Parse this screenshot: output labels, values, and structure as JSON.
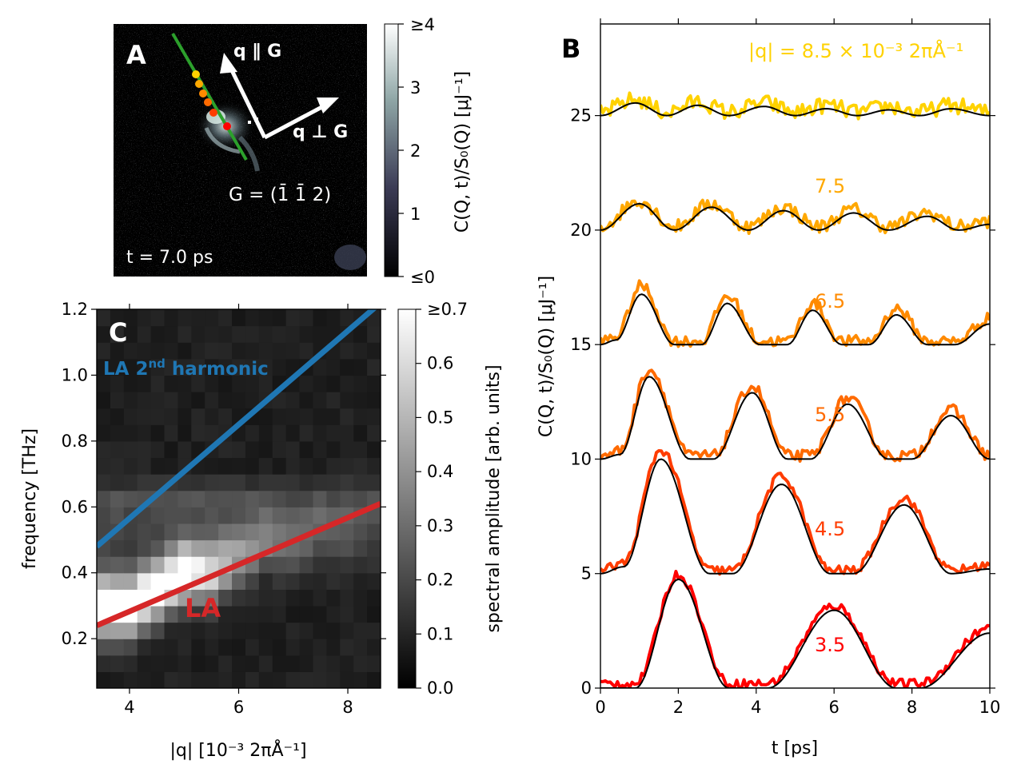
{
  "panels": {
    "a": {
      "letter": "A",
      "time_label": "t = 7.0 ps",
      "arrow_parallel_label": "q ∥ G",
      "arrow_perp_label": "q ⊥ G",
      "g_vector_label": "G = (1̄ 1̄ 2)",
      "colorbar": {
        "label": "C(Q, t)/S₀(Q) [μJ⁻¹]",
        "ticks": [
          "≤0",
          "1",
          "2",
          "3",
          "≥4"
        ],
        "range": [
          0,
          4
        ]
      },
      "point_colors": [
        "#ffd200",
        "#ffa800",
        "#ff8a00",
        "#ff6a00",
        "#ff3c00",
        "#ff0000"
      ],
      "line_color": "#2ca02c"
    },
    "b": {
      "letter": "B",
      "q_prefix": "|q| = ",
      "q_unit": " × 10⁻³ 2πÅ⁻¹",
      "xlabel": "t [ps]",
      "ylabel": "C(Q, t)/S₀(Q) [μJ⁻¹]"
    },
    "c": {
      "letter": "C",
      "harmonic_label": "LA 2",
      "harmonic_sup": "nd",
      "harmonic_suffix": " harmonic",
      "la_label": "LA",
      "xlabel": "|q| [10⁻³ 2πÅ⁻¹]",
      "ylabel": "frequency [THz]",
      "colorbar": {
        "label": "spectral amplitude [arb. units]",
        "ticks": [
          "0.0",
          "0.1",
          "0.2",
          "0.3",
          "0.4",
          "0.5",
          "0.6",
          "≥0.7"
        ],
        "range": [
          0,
          0.7
        ]
      },
      "harmonic_color": "#1f77b4",
      "la_color": "#d62728"
    }
  },
  "chart_data": [
    {
      "id": "panel-b",
      "type": "line",
      "xlabel": "t [ps]",
      "ylabel": "C(Q, t)/S₀(Q) [μJ⁻¹]",
      "xlim": [
        0,
        10
      ],
      "ylim": [
        0,
        29
      ],
      "xticks": [
        0,
        2,
        4,
        6,
        8,
        10
      ],
      "yticks": [
        0,
        5,
        10,
        15,
        20,
        25
      ],
      "series": [
        {
          "q": "8.5",
          "label": "|q| = 8.5 × 10⁻³ 2πÅ⁻¹",
          "color": "#ffd200",
          "offset": 25,
          "noise": 0.35,
          "scale": 1.0,
          "t": [
            0,
            0.9,
            1.7,
            2.5,
            3.3,
            4.2,
            5.0,
            5.8,
            6.6,
            7.4,
            8.2,
            9.0,
            10
          ],
          "model": [
            25,
            25.55,
            25.0,
            25.45,
            25.0,
            25.4,
            25.0,
            25.3,
            25.0,
            25.25,
            25.0,
            25.3,
            25.0
          ]
        },
        {
          "q": "7.5",
          "label": "7.5",
          "color": "#ffa800",
          "offset": 20,
          "noise": 0.3,
          "scale": 1.0,
          "t": [
            0,
            1.0,
            1.9,
            2.85,
            3.8,
            4.7,
            5.6,
            6.5,
            7.4,
            8.4,
            9.2,
            10
          ],
          "model": [
            20,
            21.15,
            20.0,
            21.0,
            20.0,
            20.85,
            20.0,
            20.75,
            20.0,
            20.6,
            20.0,
            20.25
          ]
        },
        {
          "q": "6.5",
          "label": "6.5",
          "color": "#ff8a00",
          "offset": 15,
          "noise": 0.25,
          "scale": 1.1,
          "t": [
            0,
            0.4,
            1.05,
            1.9,
            2.6,
            3.25,
            4.1,
            4.8,
            5.45,
            6.2,
            6.9,
            7.6,
            8.4,
            9.1,
            10
          ],
          "model": [
            15,
            15.2,
            17.2,
            15.0,
            15.0,
            16.8,
            15.0,
            15.0,
            16.5,
            15.0,
            15.0,
            16.3,
            15.0,
            15.0,
            15.9
          ]
        },
        {
          "q": "5.5",
          "label": "5.5",
          "color": "#ff6a00",
          "offset": 10,
          "noise": 0.25,
          "scale": 1.05,
          "t": [
            0,
            0.5,
            1.25,
            2.3,
            2.9,
            3.9,
            4.8,
            5.4,
            6.35,
            7.4,
            8.0,
            9.0,
            10
          ],
          "model": [
            10,
            10.2,
            13.6,
            10.0,
            10.0,
            12.9,
            10.0,
            10.0,
            12.4,
            10.0,
            10.0,
            11.9,
            10.0
          ]
        },
        {
          "q": "4.5",
          "label": "4.5",
          "color": "#ff3c00",
          "offset": 5,
          "noise": 0.2,
          "scale": 1.05,
          "t": [
            0,
            0.6,
            1.55,
            2.8,
            3.4,
            4.65,
            5.9,
            6.5,
            7.8,
            9.0,
            10
          ],
          "model": [
            5,
            5.3,
            10.0,
            5.0,
            5.0,
            8.9,
            5.0,
            5.0,
            8.0,
            5.0,
            5.2
          ]
        },
        {
          "q": "3.5",
          "label": "3.5",
          "color": "#ff0000",
          "offset": 0,
          "noise": 0.2,
          "scale": 1.0,
          "t": [
            0,
            0.9,
            2.0,
            3.3,
            4.3,
            6.0,
            7.6,
            8.2,
            10
          ],
          "model": [
            0,
            0.0,
            4.75,
            0.0,
            0.0,
            3.4,
            0.0,
            0.0,
            2.4
          ]
        }
      ]
    },
    {
      "id": "panel-c",
      "type": "heatmap",
      "xlabel": "|q| [10⁻³ 2πÅ⁻¹]",
      "ylabel": "frequency [THz]",
      "xlim": [
        3.4,
        8.6
      ],
      "ylim": [
        0.05,
        1.2
      ],
      "xticks": [
        4,
        6,
        8
      ],
      "yticks": [
        0.2,
        0.4,
        0.6,
        0.8,
        1.0,
        1.2
      ],
      "lines": [
        {
          "name": "LA 2nd harmonic",
          "x": [
            3.4,
            8.6
          ],
          "y": [
            0.48,
            1.22
          ]
        },
        {
          "name": "LA",
          "x": [
            3.4,
            8.6
          ],
          "y": [
            0.24,
            0.61
          ]
        }
      ],
      "ridge": {
        "q_centers": [
          3.5,
          4.0,
          4.5,
          5.0,
          5.5,
          6.0,
          6.5,
          7.0,
          7.5,
          8.0,
          8.5
        ],
        "peak_freq": [
          0.3,
          0.3,
          0.35,
          0.4,
          0.4,
          0.45,
          0.5,
          0.5,
          0.55,
          0.55,
          0.6
        ],
        "peak_amp": [
          0.75,
          0.72,
          0.7,
          0.65,
          0.5,
          0.3,
          0.2,
          0.15,
          0.12,
          0.1,
          0.08
        ]
      }
    },
    {
      "id": "panel-a-colorbar",
      "type": "heatmap",
      "title": "C(Q, t)/S₀(Q) [μJ⁻¹]",
      "ylim": [
        0,
        4
      ]
    }
  ]
}
